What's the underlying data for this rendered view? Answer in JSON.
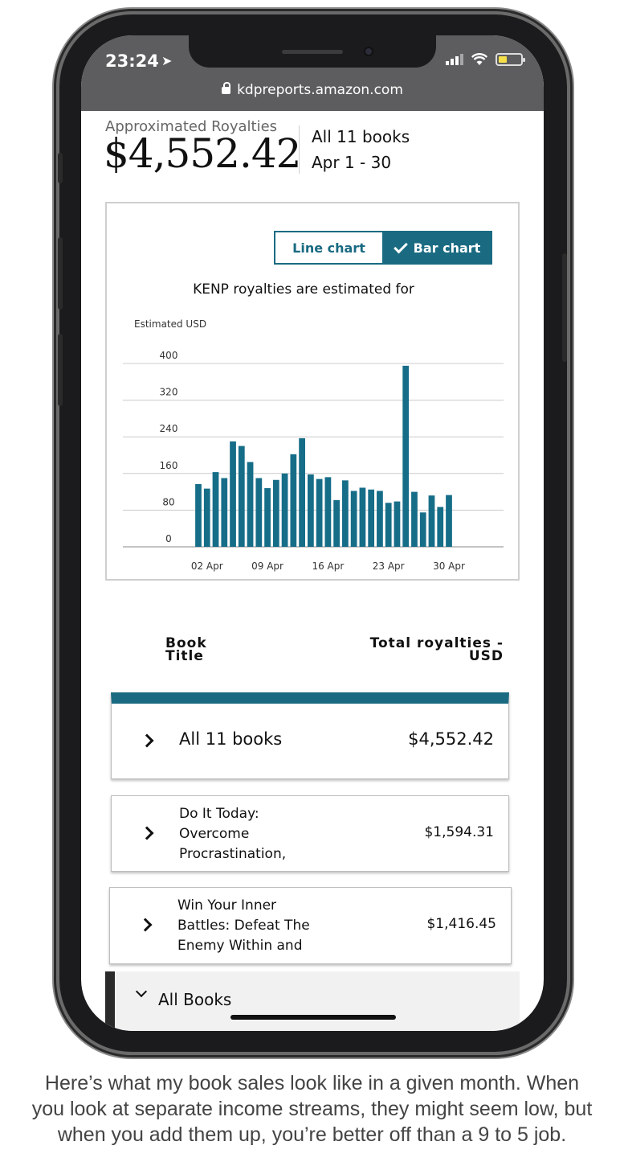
{
  "status_bar": {
    "time": "23:24",
    "location_arrow": "location-arrow-icon"
  },
  "browser": {
    "url": "kdpreports.amazon.com"
  },
  "summary": {
    "label": "Approximated Royalties",
    "total": "$4,552.42",
    "scope": "All 11 books",
    "period": "Apr 1 - 30"
  },
  "chart_toggle": {
    "line_label": "Line chart",
    "bar_label": "Bar chart",
    "selected": "Bar chart"
  },
  "chart_data": {
    "type": "bar",
    "title": "KENP royalties are estimated for",
    "ylabel": "Estimated USD",
    "xlabel": "",
    "ylim": [
      0,
      400
    ],
    "yticks": [
      400,
      320,
      240,
      160,
      80,
      0
    ],
    "xtick_labels": [
      "02 Apr",
      "09 Apr",
      "16 Apr",
      "23 Apr",
      "30 Apr"
    ],
    "categories": [
      "01 Apr",
      "02 Apr",
      "03 Apr",
      "04 Apr",
      "05 Apr",
      "06 Apr",
      "07 Apr",
      "08 Apr",
      "09 Apr",
      "10 Apr",
      "11 Apr",
      "12 Apr",
      "13 Apr",
      "14 Apr",
      "15 Apr",
      "16 Apr",
      "17 Apr",
      "18 Apr",
      "19 Apr",
      "20 Apr",
      "21 Apr",
      "22 Apr",
      "23 Apr",
      "24 Apr",
      "25 Apr",
      "26 Apr",
      "27 Apr",
      "28 Apr",
      "29 Apr",
      "30 Apr"
    ],
    "values": [
      137,
      127,
      163,
      150,
      230,
      220,
      185,
      150,
      128,
      146,
      160,
      202,
      237,
      158,
      148,
      152,
      102,
      145,
      122,
      129,
      125,
      122,
      96,
      99,
      395,
      120,
      75,
      112,
      87,
      113
    ],
    "color": "#166d88"
  },
  "table": {
    "header_book": [
      "Book",
      "Title"
    ],
    "header_total": [
      "Total royalties -",
      "USD"
    ],
    "summary_row": {
      "title": "All 11 books",
      "value": "$4,552.42"
    },
    "rows": [
      {
        "lines": [
          "Do It Today:",
          "Overcome",
          "Procrastination,"
        ],
        "value": "$1,594.31"
      },
      {
        "lines": [
          "Win Your Inner",
          "Battles: Defeat The",
          "Enemy Within and"
        ],
        "value": "$1,416.45"
      }
    ]
  },
  "bottom_nav": {
    "label": "All Books"
  },
  "caption": [
    "Here’s what my book sales look like in a given month. When",
    "you look at separate income streams, they might seem low, but",
    "when you add them up, you’re better off than a 9 to 5 job."
  ],
  "colors": {
    "accent": "#1a6b82",
    "bar": "#166d88"
  }
}
